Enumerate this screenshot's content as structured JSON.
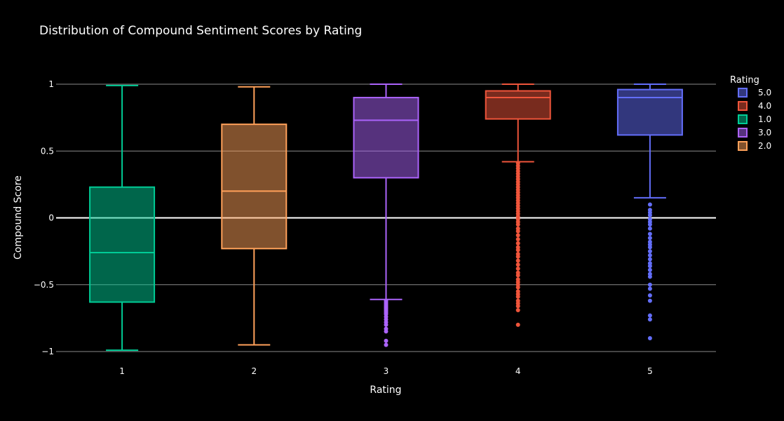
{
  "chart_data": {
    "type": "box",
    "title": "Distribution of Compound Sentiment Scores by Rating",
    "xlabel": "Rating",
    "ylabel": "Compound Score",
    "categories": [
      "1",
      "2",
      "3",
      "4",
      "5"
    ],
    "ylim": [
      -1.05,
      1.05
    ],
    "yticks": [
      -1,
      -0.5,
      0,
      0.5,
      1
    ],
    "ytick_labels": [
      "−1",
      "−0.5",
      "0",
      "0.5",
      "1"
    ],
    "grid": true,
    "legend": {
      "title": "Rating",
      "placement": "top-right",
      "order": [
        "5.0",
        "4.0",
        "1.0",
        "3.0",
        "2.0"
      ]
    },
    "series": [
      {
        "name": "1.0",
        "category": "1",
        "color": "#00cc96",
        "min": -0.99,
        "q1": -0.63,
        "median": -0.26,
        "q3": 0.23,
        "max": 0.99,
        "outliers": []
      },
      {
        "name": "2.0",
        "category": "2",
        "color": "#ffa15a",
        "min": -0.95,
        "q1": -0.23,
        "median": 0.2,
        "q3": 0.7,
        "max": 0.98,
        "outliers": []
      },
      {
        "name": "3.0",
        "category": "3",
        "color": "#ab63fa",
        "min": -0.61,
        "q1": 0.3,
        "median": 0.73,
        "q3": 0.9,
        "max": 1.0,
        "outliers": [
          -0.62,
          -0.63,
          -0.64,
          -0.65,
          -0.66,
          -0.67,
          -0.68,
          -0.69,
          -0.7,
          -0.71,
          -0.72,
          -0.74,
          -0.76,
          -0.78,
          -0.8,
          -0.83,
          -0.85,
          -0.92,
          -0.95
        ]
      },
      {
        "name": "4.0",
        "category": "4",
        "color": "#ef553b",
        "min": 0.42,
        "q1": 0.74,
        "median": 0.9,
        "q3": 0.95,
        "max": 1.0,
        "outliers": [
          0.41,
          0.39,
          0.37,
          0.35,
          0.33,
          0.31,
          0.29,
          0.27,
          0.25,
          0.23,
          0.21,
          0.19,
          0.17,
          0.15,
          0.13,
          0.11,
          0.09,
          0.07,
          0.05,
          0.03,
          0.01,
          -0.01,
          -0.03,
          -0.05,
          -0.08,
          -0.1,
          -0.13,
          -0.16,
          -0.19,
          -0.22,
          -0.24,
          -0.27,
          -0.29,
          -0.32,
          -0.35,
          -0.38,
          -0.41,
          -0.43,
          -0.46,
          -0.48,
          -0.5,
          -0.52,
          -0.55,
          -0.57,
          -0.59,
          -0.62,
          -0.64,
          -0.66,
          -0.69,
          -0.8
        ]
      },
      {
        "name": "5.0",
        "category": "5",
        "color": "#636efa",
        "min": 0.15,
        "q1": 0.62,
        "median": 0.9,
        "q3": 0.96,
        "max": 1.0,
        "outliers": [
          0.1,
          0.06,
          0.04,
          0.02,
          -0.01,
          -0.03,
          -0.05,
          -0.08,
          -0.12,
          -0.15,
          -0.18,
          -0.2,
          -0.22,
          -0.25,
          -0.28,
          -0.31,
          -0.34,
          -0.36,
          -0.39,
          -0.42,
          -0.44,
          -0.5,
          -0.53,
          -0.58,
          -0.62,
          -0.73,
          -0.76,
          -0.9
        ]
      }
    ]
  }
}
